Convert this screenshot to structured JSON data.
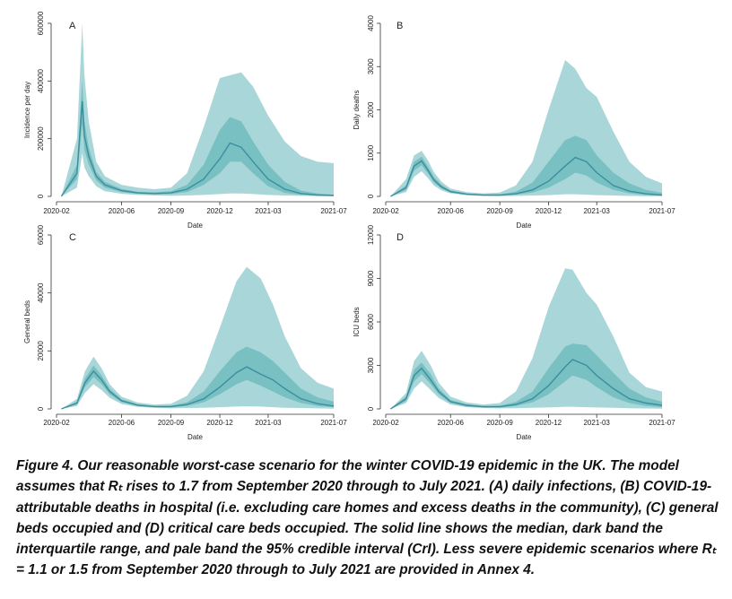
{
  "colors": {
    "pale_band": "#a9d6d8",
    "dark_band": "#79c0c3",
    "median_line": "#3b8f9c",
    "axis": "#333333"
  },
  "caption": "Figure 4. Our reasonable worst-case scenario for the winter COVID-19 epidemic in the UK. The model assumes that Rₜ rises to 1.7 from September 2020 through to July 2021. (A) daily infections, (B) COVID-19-attributable deaths in hospital (i.e. excluding care homes and excess deaths in the community), (C) general beds occupied and (D) critical care beds occupied. The solid line shows the median, dark band the interquartile range, and pale band the 95% credible interval (CrI). Less severe epidemic scenarios where Rₜ = 1.1 or 1.5 from September 2020 through to July 2021 are provided in Annex 4.",
  "chart_data": [
    {
      "panel": "A",
      "type": "area",
      "ylabel": "Incidence per day",
      "xlabel": "Date",
      "x_ticks": [
        "2020-02",
        "2020-06",
        "2020-09",
        "2020-12",
        "2021-03",
        "2021-07"
      ],
      "y_ticks": [
        0,
        200000,
        400000,
        600000
      ],
      "ylim": [
        0,
        600000
      ],
      "x": [
        "2020-02-10",
        "2020-03-10",
        "2020-03-20",
        "2020-03-24",
        "2020-04-01",
        "2020-04-15",
        "2020-05-01",
        "2020-06-01",
        "2020-07-01",
        "2020-08-01",
        "2020-09-01",
        "2020-10-01",
        "2020-11-01",
        "2020-12-01",
        "2020-12-20",
        "2021-01-10",
        "2021-02-01",
        "2021-03-01",
        "2021-04-01",
        "2021-05-01",
        "2021-06-01",
        "2021-07-01"
      ],
      "series": [
        {
          "name": "median",
          "values": [
            0,
            80000,
            330000,
            210000,
            140000,
            70000,
            40000,
            20000,
            12000,
            10000,
            12000,
            25000,
            60000,
            130000,
            185000,
            170000,
            120000,
            60000,
            25000,
            10000,
            5000,
            3000
          ]
        },
        {
          "name": "IQR lower",
          "values": [
            0,
            60000,
            250000,
            160000,
            110000,
            55000,
            30000,
            15000,
            9000,
            7000,
            8000,
            15000,
            40000,
            80000,
            120000,
            120000,
            80000,
            35000,
            12000,
            5000,
            2500,
            1500
          ]
        },
        {
          "name": "IQR upper",
          "values": [
            0,
            110000,
            400000,
            260000,
            170000,
            85000,
            50000,
            26000,
            16000,
            14000,
            18000,
            40000,
            110000,
            230000,
            275000,
            260000,
            190000,
            110000,
            50000,
            20000,
            10000,
            6000
          ]
        },
        {
          "name": "95% CrI lower",
          "values": [
            0,
            30000,
            150000,
            100000,
            70000,
            35000,
            18000,
            9000,
            5000,
            3000,
            2000,
            3000,
            5000,
            8000,
            10000,
            10000,
            8000,
            5000,
            3000,
            2000,
            1000,
            500
          ]
        },
        {
          "name": "95% CrI upper",
          "values": [
            0,
            200000,
            600000,
            420000,
            260000,
            120000,
            70000,
            40000,
            30000,
            25000,
            30000,
            80000,
            240000,
            410000,
            420000,
            430000,
            380000,
            280000,
            190000,
            140000,
            120000,
            115000
          ]
        }
      ]
    },
    {
      "panel": "B",
      "type": "area",
      "ylabel": "Daily deaths",
      "xlabel": "Date",
      "x_ticks": [
        "2020-02",
        "2020-06",
        "2020-09",
        "2020-12",
        "2021-03",
        "2021-07"
      ],
      "y_ticks": [
        0,
        1000,
        2000,
        3000,
        4000
      ],
      "ylim": [
        0,
        4000
      ],
      "x": [
        "2020-02-10",
        "2020-03-10",
        "2020-03-25",
        "2020-04-08",
        "2020-04-20",
        "2020-05-01",
        "2020-05-15",
        "2020-06-01",
        "2020-07-01",
        "2020-08-01",
        "2020-09-01",
        "2020-10-01",
        "2020-11-01",
        "2020-12-01",
        "2021-01-01",
        "2021-01-20",
        "2021-02-10",
        "2021-03-01",
        "2021-04-01",
        "2021-05-01",
        "2021-06-01",
        "2021-07-01"
      ],
      "series": [
        {
          "name": "median",
          "values": [
            0,
            200,
            700,
            820,
            600,
            380,
            220,
            110,
            50,
            30,
            30,
            60,
            150,
            350,
            700,
            900,
            800,
            550,
            250,
            120,
            60,
            30
          ]
        },
        {
          "name": "IQR lower",
          "values": [
            0,
            150,
            600,
            720,
            520,
            320,
            180,
            90,
            40,
            20,
            20,
            40,
            90,
            200,
            400,
            550,
            480,
            320,
            150,
            70,
            30,
            15
          ]
        },
        {
          "name": "IQR upper",
          "values": [
            0,
            260,
            800,
            920,
            690,
            450,
            270,
            140,
            70,
            45,
            50,
            110,
            320,
            800,
            1300,
            1400,
            1300,
            950,
            550,
            300,
            150,
            80
          ]
        },
        {
          "name": "95% CrI lower",
          "values": [
            0,
            100,
            450,
            580,
            420,
            250,
            140,
            70,
            30,
            10,
            5,
            10,
            20,
            30,
            50,
            50,
            40,
            30,
            20,
            10,
            5,
            5
          ]
        },
        {
          "name": "95% CrI upper",
          "values": [
            0,
            400,
            950,
            1050,
            830,
            560,
            340,
            180,
            100,
            70,
            90,
            250,
            800,
            2000,
            3150,
            2950,
            2500,
            2300,
            1500,
            800,
            450,
            300
          ]
        }
      ]
    },
    {
      "panel": "C",
      "type": "area",
      "ylabel": "General beds",
      "xlabel": "Date",
      "x_ticks": [
        "2020-02",
        "2020-06",
        "2020-09",
        "2020-12",
        "2021-03",
        "2021-07"
      ],
      "y_ticks": [
        0,
        20000,
        40000,
        60000
      ],
      "ylim": [
        0,
        60000
      ],
      "x": [
        "2020-02-10",
        "2020-03-10",
        "2020-03-25",
        "2020-04-10",
        "2020-04-25",
        "2020-05-10",
        "2020-06-01",
        "2020-07-01",
        "2020-08-01",
        "2020-09-01",
        "2020-10-01",
        "2020-11-01",
        "2020-12-01",
        "2021-01-01",
        "2021-01-20",
        "2021-02-15",
        "2021-03-10",
        "2021-04-01",
        "2021-05-01",
        "2021-06-01",
        "2021-07-01"
      ],
      "series": [
        {
          "name": "median",
          "values": [
            0,
            2000,
            9000,
            13000,
            10000,
            6000,
            2800,
            1300,
            800,
            800,
            1500,
            3500,
            7500,
            12500,
            14500,
            12000,
            10000,
            7000,
            3500,
            1800,
            1000
          ]
        },
        {
          "name": "IQR lower",
          "values": [
            0,
            1500,
            7500,
            11000,
            8500,
            5000,
            2300,
            1000,
            600,
            500,
            1000,
            2300,
            5000,
            8500,
            10000,
            8000,
            6000,
            4000,
            2000,
            1000,
            600
          ]
        },
        {
          "name": "IQR upper",
          "values": [
            0,
            2500,
            10500,
            15000,
            11500,
            7000,
            3300,
            1600,
            1000,
            1100,
            2300,
            6000,
            13000,
            19500,
            21500,
            19500,
            16500,
            12500,
            7000,
            4000,
            2500
          ]
        },
        {
          "name": "95% CrI lower",
          "values": [
            0,
            1000,
            5500,
            8500,
            6500,
            3800,
            1700,
            700,
            400,
            200,
            300,
            400,
            600,
            800,
            900,
            800,
            600,
            400,
            300,
            200,
            100
          ]
        },
        {
          "name": "95% CrI upper",
          "values": [
            0,
            3500,
            13000,
            18000,
            14000,
            8500,
            4200,
            2200,
            1500,
            1800,
            4500,
            13000,
            28000,
            44000,
            49000,
            45000,
            36000,
            25000,
            14000,
            9000,
            7000
          ]
        }
      ]
    },
    {
      "panel": "D",
      "type": "area",
      "ylabel": "ICU beds",
      "xlabel": "Date",
      "x_ticks": [
        "2020-02",
        "2020-06",
        "2020-09",
        "2020-12",
        "2021-03",
        "2021-07"
      ],
      "y_ticks": [
        0,
        3000,
        6000,
        9000,
        12000
      ],
      "ylim": [
        0,
        12000
      ],
      "x": [
        "2020-02-10",
        "2020-03-10",
        "2020-03-25",
        "2020-04-08",
        "2020-04-25",
        "2020-05-10",
        "2020-06-01",
        "2020-07-01",
        "2020-08-01",
        "2020-09-01",
        "2020-10-01",
        "2020-11-01",
        "2020-12-01",
        "2021-01-01",
        "2021-01-15",
        "2021-02-10",
        "2021-03-01",
        "2021-04-01",
        "2021-05-01",
        "2021-06-01",
        "2021-07-01"
      ],
      "series": [
        {
          "name": "median",
          "values": [
            0,
            700,
            2300,
            2800,
            2000,
            1200,
            500,
            250,
            150,
            150,
            300,
            700,
            1600,
            2900,
            3400,
            3000,
            2300,
            1400,
            700,
            400,
            250
          ]
        },
        {
          "name": "IQR lower",
          "values": [
            0,
            550,
            1900,
            2400,
            1700,
            1000,
            400,
            180,
            100,
            100,
            200,
            450,
            1000,
            1900,
            2300,
            2000,
            1500,
            800,
            400,
            200,
            120
          ]
        },
        {
          "name": "IQR upper",
          "values": [
            0,
            850,
            2700,
            3200,
            2400,
            1400,
            620,
            320,
            200,
            220,
            480,
            1200,
            2800,
            4300,
            4500,
            4400,
            3700,
            2500,
            1400,
            800,
            500
          ]
        },
        {
          "name": "95% CrI lower",
          "values": [
            0,
            400,
            1400,
            1900,
            1300,
            750,
            300,
            120,
            60,
            40,
            50,
            80,
            100,
            150,
            150,
            120,
            100,
            80,
            50,
            30,
            20
          ]
        },
        {
          "name": "95% CrI upper",
          "values": [
            0,
            1100,
            3300,
            4000,
            3000,
            1800,
            850,
            450,
            300,
            400,
            1200,
            3500,
            7000,
            9700,
            9600,
            8000,
            7200,
            5000,
            2500,
            1500,
            1200
          ]
        }
      ]
    }
  ]
}
